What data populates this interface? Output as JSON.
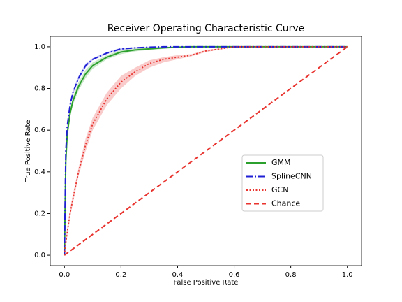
{
  "chart_data": {
    "type": "line",
    "title": "Receiver Operating Characteristic Curve",
    "xlabel": "False Positive Rate",
    "ylabel": "True Positive Rate",
    "x": [
      0,
      0.005,
      0.01,
      0.02,
      0.03,
      0.05,
      0.075,
      0.1,
      0.15,
      0.2,
      0.25,
      0.3,
      0.35,
      0.4,
      0.45,
      0.5,
      0.6,
      0.7,
      0.8,
      0.9,
      1.0
    ],
    "series": [
      {
        "name": "GMM",
        "color": "#2ca02c",
        "linestyle": "solid",
        "values": [
          0,
          0.45,
          0.58,
          0.68,
          0.74,
          0.81,
          0.87,
          0.91,
          0.95,
          0.975,
          0.985,
          0.99,
          0.995,
          0.998,
          1,
          1,
          1,
          1,
          1,
          1,
          1
        ],
        "lower": [
          0,
          0.43,
          0.56,
          0.66,
          0.72,
          0.79,
          0.85,
          0.895,
          0.94,
          0.965,
          0.978,
          0.985,
          0.99,
          0.995,
          0.998,
          1,
          1,
          1,
          1,
          1,
          1
        ],
        "upper": [
          0,
          0.47,
          0.6,
          0.7,
          0.76,
          0.83,
          0.89,
          0.925,
          0.96,
          0.985,
          0.992,
          0.995,
          1,
          1,
          1,
          1,
          1,
          1,
          1,
          1,
          1
        ]
      },
      {
        "name": "SplineCNN",
        "color": "#1f1fd6",
        "linestyle": "dashdot",
        "values": [
          0,
          0.5,
          0.62,
          0.72,
          0.78,
          0.85,
          0.91,
          0.94,
          0.97,
          0.99,
          0.995,
          0.998,
          1,
          1,
          1,
          1,
          1,
          1,
          1,
          1,
          1
        ],
        "lower": [
          0,
          0.49,
          0.61,
          0.71,
          0.77,
          0.84,
          0.9,
          0.935,
          0.965,
          0.985,
          0.992,
          0.996,
          0.998,
          1,
          1,
          1,
          1,
          1,
          1,
          1,
          1
        ],
        "upper": [
          0,
          0.51,
          0.63,
          0.73,
          0.79,
          0.86,
          0.92,
          0.945,
          0.975,
          0.995,
          0.998,
          1,
          1,
          1,
          1,
          1,
          1,
          1,
          1,
          1,
          1
        ]
      },
      {
        "name": "GCN",
        "color": "#e8332e",
        "linestyle": "dotted",
        "values": [
          0,
          0.06,
          0.11,
          0.2,
          0.27,
          0.4,
          0.53,
          0.63,
          0.75,
          0.83,
          0.88,
          0.92,
          0.94,
          0.95,
          0.96,
          0.98,
          1,
          1,
          1,
          1,
          1
        ],
        "lower": [
          0,
          0.04,
          0.09,
          0.18,
          0.25,
          0.38,
          0.5,
          0.6,
          0.72,
          0.8,
          0.86,
          0.9,
          0.925,
          0.94,
          0.955,
          0.975,
          0.998,
          1,
          1,
          1,
          1
        ],
        "upper": [
          0,
          0.08,
          0.13,
          0.22,
          0.29,
          0.42,
          0.56,
          0.66,
          0.78,
          0.86,
          0.9,
          0.935,
          0.95,
          0.96,
          0.965,
          0.985,
          1,
          1,
          1,
          1,
          1
        ]
      },
      {
        "name": "Chance",
        "color": "#e8332e",
        "linestyle": "dashed",
        "values": [
          0,
          0.005,
          0.01,
          0.02,
          0.03,
          0.05,
          0.075,
          0.1,
          0.15,
          0.2,
          0.25,
          0.3,
          0.35,
          0.4,
          0.45,
          0.5,
          0.6,
          0.7,
          0.8,
          0.9,
          1.0
        ]
      }
    ],
    "xlim": [
      -0.05,
      1.05
    ],
    "ylim": [
      -0.05,
      1.05
    ],
    "xticks": [
      {
        "value": 0,
        "label": "0.0"
      },
      0.2,
      0.4,
      0.6,
      0.8,
      {
        "value": 1,
        "label": "1.0"
      }
    ],
    "yticks": [
      {
        "value": 0,
        "label": "0.0"
      },
      0.2,
      0.4,
      0.6,
      0.8,
      {
        "value": 1,
        "label": "1.0"
      }
    ],
    "legend": "center right"
  }
}
